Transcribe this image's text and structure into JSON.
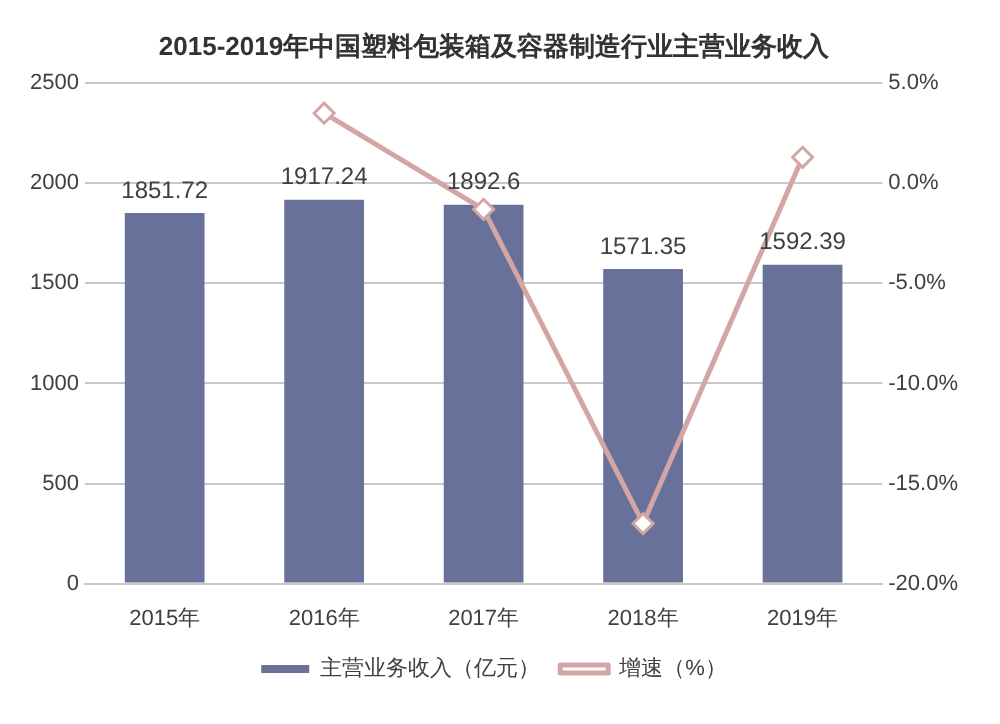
{
  "chart_data": {
    "type": "bar",
    "title": "2015-2019年中国塑料包装箱及容器制造行业主营业务收入",
    "categories": [
      "2015年",
      "2016年",
      "2017年",
      "2018年",
      "2019年"
    ],
    "series": [
      {
        "name": "主营业务收入（亿元）",
        "color": "#67719a",
        "values": [
          1851.72,
          1917.24,
          1892.6,
          1571.35,
          1592.39
        ],
        "value_labels": [
          "1851.72",
          "1917.24",
          "1892.6",
          "1571.35",
          "1592.39"
        ]
      },
      {
        "name": "增速（%）",
        "type": "line",
        "axis": "y2",
        "color": "#d4a5a5",
        "marker": "diamond",
        "values": [
          null,
          3.5,
          -1.3,
          -17.0,
          1.3
        ]
      }
    ],
    "ylim": [
      0,
      2500
    ],
    "yticks": [
      0,
      500,
      1000,
      1500,
      2000,
      2500
    ],
    "y2lim": [
      -20,
      5
    ],
    "y2ticks": [
      {
        "value": -20,
        "label": "-20.0%"
      },
      {
        "value": -15,
        "label": "-15.0%"
      },
      {
        "value": -10,
        "label": "-10.0%"
      },
      {
        "value": -5,
        "label": "-5.0%"
      },
      {
        "value": 0,
        "label": "0.0%"
      },
      {
        "value": 5,
        "label": "5.0%"
      }
    ],
    "grid": "y",
    "legend": "bottom"
  }
}
